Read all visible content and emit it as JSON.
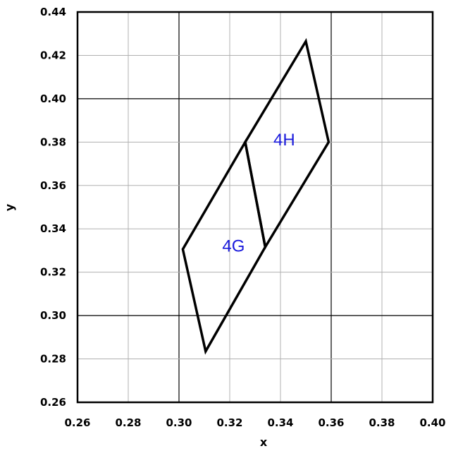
{
  "chart_data": {
    "type": "diagram",
    "title": "",
    "xlabel": "x",
    "ylabel": "y",
    "xlim": [
      0.26,
      0.4
    ],
    "ylim": [
      0.26,
      0.44
    ],
    "x_ticks": [
      0.26,
      0.28,
      0.3,
      0.32,
      0.34,
      0.36,
      0.38,
      0.4
    ],
    "y_ticks": [
      0.26,
      0.28,
      0.3,
      0.32,
      0.34,
      0.36,
      0.38,
      0.4,
      0.42,
      0.44
    ],
    "x_tick_labels": [
      "0.26",
      "0.28",
      "0.30",
      "0.32",
      "0.34",
      "0.36",
      "0.38",
      "0.40"
    ],
    "y_tick_labels": [
      "0.26",
      "0.28",
      "0.30",
      "0.32",
      "0.34",
      "0.36",
      "0.38",
      "0.40",
      "0.42",
      "0.44"
    ],
    "grid": true,
    "colors": {
      "grid": "#b0b0b0",
      "outline": "#000000",
      "region_label": "#1a1adc"
    },
    "regions": [
      {
        "name": "4G",
        "label_position": [
          0.3215,
          0.3315
        ],
        "vertices": [
          [
            0.3015,
            0.3306
          ],
          [
            0.3261,
            0.38
          ],
          [
            0.334,
            0.3316
          ],
          [
            0.3105,
            0.2835
          ]
        ]
      },
      {
        "name": "4H",
        "label_position": [
          0.3415,
          0.3806
        ],
        "vertices": [
          [
            0.3261,
            0.38
          ],
          [
            0.35,
            0.4265
          ],
          [
            0.359,
            0.38
          ],
          [
            0.334,
            0.3316
          ]
        ]
      }
    ]
  }
}
